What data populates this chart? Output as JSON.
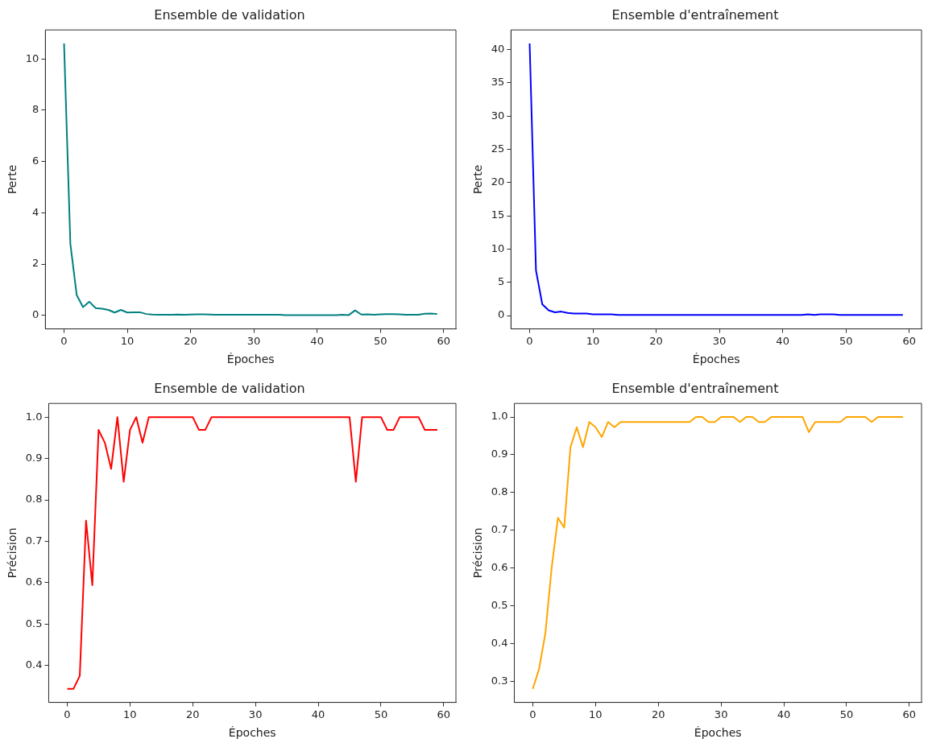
{
  "chart_data": [
    {
      "type": "line",
      "title": "Ensemble de validation",
      "xlabel": "Époches",
      "ylabel": "Perte",
      "x": [
        0,
        1,
        2,
        3,
        4,
        5,
        6,
        7,
        8,
        9,
        10,
        11,
        12,
        13,
        14,
        15,
        16,
        17,
        18,
        19,
        20,
        21,
        22,
        23,
        24,
        25,
        26,
        27,
        28,
        29,
        30,
        31,
        32,
        33,
        34,
        35,
        36,
        37,
        38,
        39,
        40,
        41,
        42,
        43,
        44,
        45,
        46,
        47,
        48,
        49,
        50,
        51,
        52,
        53,
        54,
        55,
        56,
        57,
        58,
        59
      ],
      "series": [
        {
          "color": "#008080",
          "values": [
            10.6,
            2.79,
            0.79,
            0.32,
            0.53,
            0.28,
            0.26,
            0.21,
            0.11,
            0.21,
            0.11,
            0.12,
            0.12,
            0.05,
            0.03,
            0.02,
            0.02,
            0.02,
            0.03,
            0.02,
            0.03,
            0.04,
            0.04,
            0.03,
            0.02,
            0.02,
            0.02,
            0.02,
            0.02,
            0.02,
            0.02,
            0.02,
            0.02,
            0.02,
            0.02,
            0.01,
            0.01,
            0.01,
            0.01,
            0.01,
            0.01,
            0.01,
            0.01,
            0.01,
            0.02,
            0.01,
            0.19,
            0.03,
            0.04,
            0.02,
            0.04,
            0.05,
            0.05,
            0.04,
            0.02,
            0.02,
            0.02,
            0.06,
            0.07,
            0.05
          ]
        }
      ],
      "xlim": [
        -2.95,
        61.95
      ],
      "xticks": [
        0,
        10,
        20,
        30,
        40,
        50,
        60
      ],
      "ylim": [
        -0.53,
        11.13
      ],
      "yticks": [
        0,
        2,
        4,
        6,
        8,
        10
      ],
      "grid": false
    },
    {
      "type": "line",
      "title": "Ensemble d'entraînement",
      "xlabel": "Époches",
      "ylabel": "Perte",
      "x": [
        0,
        1,
        2,
        3,
        4,
        5,
        6,
        7,
        8,
        9,
        10,
        11,
        12,
        13,
        14,
        15,
        16,
        17,
        18,
        19,
        20,
        21,
        22,
        23,
        24,
        25,
        26,
        27,
        28,
        29,
        30,
        31,
        32,
        33,
        34,
        35,
        36,
        37,
        38,
        39,
        40,
        41,
        42,
        43,
        44,
        45,
        46,
        47,
        48,
        49,
        50,
        51,
        52,
        53,
        54,
        55,
        56,
        57,
        58,
        59
      ],
      "series": [
        {
          "color": "#0000ff",
          "values": [
            40.9,
            6.8,
            1.7,
            0.8,
            0.5,
            0.6,
            0.4,
            0.3,
            0.3,
            0.3,
            0.2,
            0.2,
            0.2,
            0.2,
            0.1,
            0.1,
            0.1,
            0.1,
            0.1,
            0.1,
            0.1,
            0.1,
            0.1,
            0.1,
            0.1,
            0.1,
            0.1,
            0.1,
            0.1,
            0.1,
            0.1,
            0.1,
            0.1,
            0.1,
            0.1,
            0.1,
            0.1,
            0.1,
            0.1,
            0.1,
            0.1,
            0.1,
            0.1,
            0.1,
            0.2,
            0.1,
            0.2,
            0.2,
            0.2,
            0.1,
            0.1,
            0.1,
            0.1,
            0.1,
            0.1,
            0.1,
            0.1,
            0.1,
            0.1,
            0.1
          ]
        }
      ],
      "xlim": [
        -2.95,
        61.95
      ],
      "xticks": [
        0,
        10,
        20,
        30,
        40,
        50,
        60
      ],
      "ylim": [
        -2,
        42.94
      ],
      "yticks": [
        0,
        5,
        10,
        15,
        20,
        25,
        30,
        35,
        40
      ],
      "grid": false
    },
    {
      "type": "line",
      "title": "Ensemble de validation",
      "xlabel": "Époches",
      "ylabel": "Précision",
      "x": [
        0,
        1,
        2,
        3,
        4,
        5,
        6,
        7,
        8,
        9,
        10,
        11,
        12,
        13,
        14,
        15,
        16,
        17,
        18,
        19,
        20,
        21,
        22,
        23,
        24,
        25,
        26,
        27,
        28,
        29,
        30,
        31,
        32,
        33,
        34,
        35,
        36,
        37,
        38,
        39,
        40,
        41,
        42,
        43,
        44,
        45,
        46,
        47,
        48,
        49,
        50,
        51,
        52,
        53,
        54,
        55,
        56,
        57,
        58,
        59
      ],
      "series": [
        {
          "color": "#ff0000",
          "values": [
            0.344,
            0.344,
            0.375,
            0.75,
            0.594,
            0.969,
            0.938,
            0.875,
            1.0,
            0.844,
            0.969,
            1.0,
            0.938,
            1.0,
            1.0,
            1.0,
            1.0,
            1.0,
            1.0,
            1.0,
            1.0,
            0.969,
            0.969,
            1.0,
            1.0,
            1.0,
            1.0,
            1.0,
            1.0,
            1.0,
            1.0,
            1.0,
            1.0,
            1.0,
            1.0,
            1.0,
            1.0,
            1.0,
            1.0,
            1.0,
            1.0,
            1.0,
            1.0,
            1.0,
            1.0,
            1.0,
            0.844,
            1.0,
            1.0,
            1.0,
            1.0,
            0.969,
            0.969,
            1.0,
            1.0,
            1.0,
            1.0,
            0.969,
            0.969,
            0.969
          ]
        }
      ],
      "xlim": [
        -2.95,
        61.95
      ],
      "xticks": [
        0,
        10,
        20,
        30,
        40,
        50,
        60
      ],
      "ylim": [
        0.311,
        1.033
      ],
      "yticks": [
        {
          "value": 0.4,
          "label": "0.4"
        },
        {
          "value": 0.5,
          "label": "0.5"
        },
        {
          "value": 0.6,
          "label": "0.6"
        },
        {
          "value": 0.7,
          "label": "0.7"
        },
        {
          "value": 0.8,
          "label": "0.8"
        },
        {
          "value": 0.9,
          "label": "0.9"
        },
        {
          "value": 1.0,
          "label": "1.0"
        }
      ],
      "grid": false
    },
    {
      "type": "line",
      "title": "Ensemble d'entraînement",
      "xlabel": "Époches",
      "ylabel": "Précision",
      "x": [
        0,
        1,
        2,
        3,
        4,
        5,
        6,
        7,
        8,
        9,
        10,
        11,
        12,
        13,
        14,
        15,
        16,
        17,
        18,
        19,
        20,
        21,
        22,
        23,
        24,
        25,
        26,
        27,
        28,
        29,
        30,
        31,
        32,
        33,
        34,
        35,
        36,
        37,
        38,
        39,
        40,
        41,
        42,
        43,
        44,
        45,
        46,
        47,
        48,
        49,
        50,
        51,
        52,
        53,
        54,
        55,
        56,
        57,
        58,
        59
      ],
      "series": [
        {
          "color": "#ffa500",
          "values": [
            0.28,
            0.333,
            0.427,
            0.6,
            0.733,
            0.707,
            0.92,
            0.973,
            0.92,
            0.987,
            0.973,
            0.947,
            0.987,
            0.973,
            0.987,
            0.987,
            0.987,
            0.987,
            0.987,
            0.987,
            0.987,
            0.987,
            0.987,
            0.987,
            0.987,
            0.987,
            1.0,
            1.0,
            0.987,
            0.987,
            1.0,
            1.0,
            1.0,
            0.987,
            1.0,
            1.0,
            0.987,
            0.987,
            1.0,
            1.0,
            1.0,
            1.0,
            1.0,
            1.0,
            0.96,
            0.987,
            0.987,
            0.987,
            0.987,
            0.987,
            1.0,
            1.0,
            1.0,
            1.0,
            0.987,
            1.0,
            1.0,
            1.0,
            1.0,
            1.0
          ]
        }
      ],
      "xlim": [
        -2.95,
        61.95
      ],
      "xticks": [
        0,
        10,
        20,
        30,
        40,
        50,
        60
      ],
      "ylim": [
        0.244,
        1.036
      ],
      "yticks": [
        {
          "value": 0.3,
          "label": "0.3"
        },
        {
          "value": 0.4,
          "label": "0.4"
        },
        {
          "value": 0.5,
          "label": "0.5"
        },
        {
          "value": 0.6,
          "label": "0.6"
        },
        {
          "value": 0.7,
          "label": "0.7"
        },
        {
          "value": 0.8,
          "label": "0.8"
        },
        {
          "value": 0.9,
          "label": "0.9"
        },
        {
          "value": 1.0,
          "label": "1.0"
        }
      ],
      "grid": false
    }
  ]
}
